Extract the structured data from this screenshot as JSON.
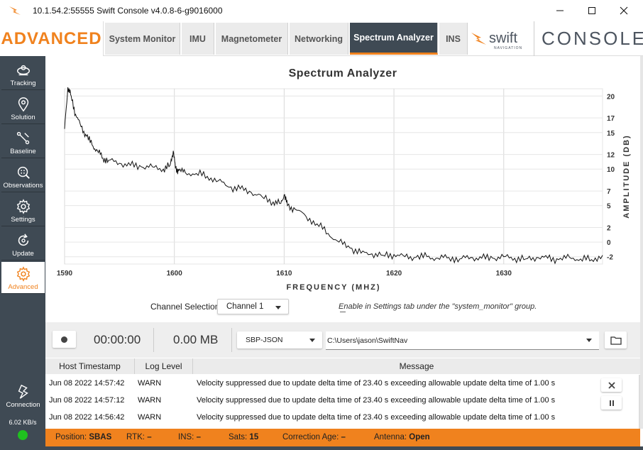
{
  "window": {
    "title": "10.1.54.2:55555 Swift Console v4.0.8-6-g9016000",
    "controls": {
      "minimize": "—",
      "maximize": "☐",
      "close": "✕"
    }
  },
  "header": {
    "brand": "ADVANCED",
    "tabs": [
      {
        "label": "System Monitor",
        "active": false
      },
      {
        "label": "IMU",
        "active": false
      },
      {
        "label": "Magnetometer",
        "active": false
      },
      {
        "label": "Networking",
        "active": false
      },
      {
        "label": "Spectrum Analyzer",
        "active": true
      },
      {
        "label": "INS",
        "active": false
      }
    ],
    "logo_word": "swift",
    "logo_sub": "NAVIGATION",
    "console_word": "CONSOLE"
  },
  "sidebar": {
    "items": [
      {
        "label": "Tracking",
        "icon": "tracking-icon"
      },
      {
        "label": "Solution",
        "icon": "location-pin-icon"
      },
      {
        "label": "Baseline",
        "icon": "baseline-icon"
      },
      {
        "label": "Observations",
        "icon": "observations-icon"
      },
      {
        "label": "Settings",
        "icon": "gear-icon"
      },
      {
        "label": "Update",
        "icon": "update-icon"
      },
      {
        "label": "Advanced",
        "icon": "advanced-gear-icon"
      }
    ],
    "connection_label": "Connection",
    "data_rate": "6.02 KB/s"
  },
  "chart_data": {
    "type": "line",
    "title": "Spectrum Analyzer",
    "xlabel": "FREQUENCY (MHZ)",
    "ylabel": "AMPLITUDE (DB)",
    "xlim": [
      1590,
      1639
    ],
    "ylim": [
      -3,
      21
    ],
    "xticks": [
      1590,
      1600,
      1610,
      1620,
      1630
    ],
    "yticks": [
      20,
      17,
      15,
      12,
      10,
      7,
      5,
      2,
      0,
      -2
    ],
    "grid": true,
    "y_axis_side": "right",
    "series": [
      {
        "name": "Channel 1",
        "x": [
          1590,
          1590.3,
          1590.6,
          1591,
          1591.5,
          1592,
          1592.5,
          1593,
          1593.5,
          1594,
          1595,
          1596,
          1597,
          1598,
          1599,
          1599.6,
          1599.9,
          1600.1,
          1600.4,
          1601,
          1602,
          1603,
          1604,
          1605,
          1606,
          1607,
          1608,
          1609,
          1609.7,
          1610,
          1610.3,
          1611,
          1612,
          1613,
          1614,
          1615,
          1616,
          1617,
          1618,
          1619,
          1620,
          1621,
          1622,
          1623,
          1624,
          1625,
          1626,
          1627,
          1628,
          1629,
          1630,
          1631,
          1632,
          1633,
          1634,
          1635,
          1636,
          1637,
          1638,
          1639
        ],
        "values": [
          15.5,
          21.2,
          20.0,
          17.5,
          15.8,
          14.5,
          13.3,
          12.5,
          11.5,
          11.2,
          10.8,
          10.5,
          10.3,
          10.3,
          10.0,
          10.5,
          12.5,
          10.1,
          9.8,
          9.5,
          9.4,
          9.0,
          8.4,
          7.5,
          7.3,
          6.8,
          6.2,
          5.5,
          5.3,
          6.5,
          5.0,
          4.5,
          3.5,
          2.5,
          1.2,
          0.0,
          -0.8,
          -1.5,
          -1.6,
          -1.8,
          -1.7,
          -2.0,
          -2.1,
          -2.0,
          -2.2,
          -2.1,
          -2.3,
          -2.1,
          -2.2,
          -2.2,
          -2.0,
          -2.2,
          -2.3,
          -2.1,
          -2.2,
          -2.4,
          -2.1,
          -2.3,
          -2.4,
          -1.8
        ]
      }
    ]
  },
  "controls": {
    "channel_label": "Channel Selection:",
    "channel_value": "Channel 1",
    "hint": "Enable in Settings tab under the \"system_monitor\" group."
  },
  "recording": {
    "elapsed": "00:00:00",
    "size": "0.00 MB",
    "format": "SBP-JSON",
    "path": "C:\\Users\\jason\\SwiftNav"
  },
  "log": {
    "headers": [
      "Host Timestamp",
      "Log Level",
      "Message"
    ],
    "rows": [
      {
        "timestamp": "Jun 08 2022 14:57:42",
        "level": "WARN",
        "message": "Velocity suppressed due to update delta time of 23.40 s exceeding allowable update delta time of 1.00 s"
      },
      {
        "timestamp": "Jun 08 2022 14:57:12",
        "level": "WARN",
        "message": "Velocity suppressed due to update delta time of 23.40 s exceeding allowable update delta time of 1.00 s"
      },
      {
        "timestamp": "Jun 08 2022 14:56:42",
        "level": "WARN",
        "message": "Velocity suppressed due to update delta time of 23.40 s exceeding allowable update delta time of 1.00 s"
      }
    ]
  },
  "status": {
    "position_label": "Position:",
    "position_value": "SBAS",
    "rtk_label": "RTK:",
    "rtk_value": "–",
    "ins_label": "INS:",
    "ins_value": "–",
    "sats_label": "Sats:",
    "sats_value": "15",
    "corr_label": "Correction Age:",
    "corr_value": "–",
    "antenna_label": "Antenna:",
    "antenna_value": "Open"
  },
  "colors": {
    "accent": "#f0821e",
    "sidebar": "#3f4a54",
    "ok": "#1fc01f"
  }
}
